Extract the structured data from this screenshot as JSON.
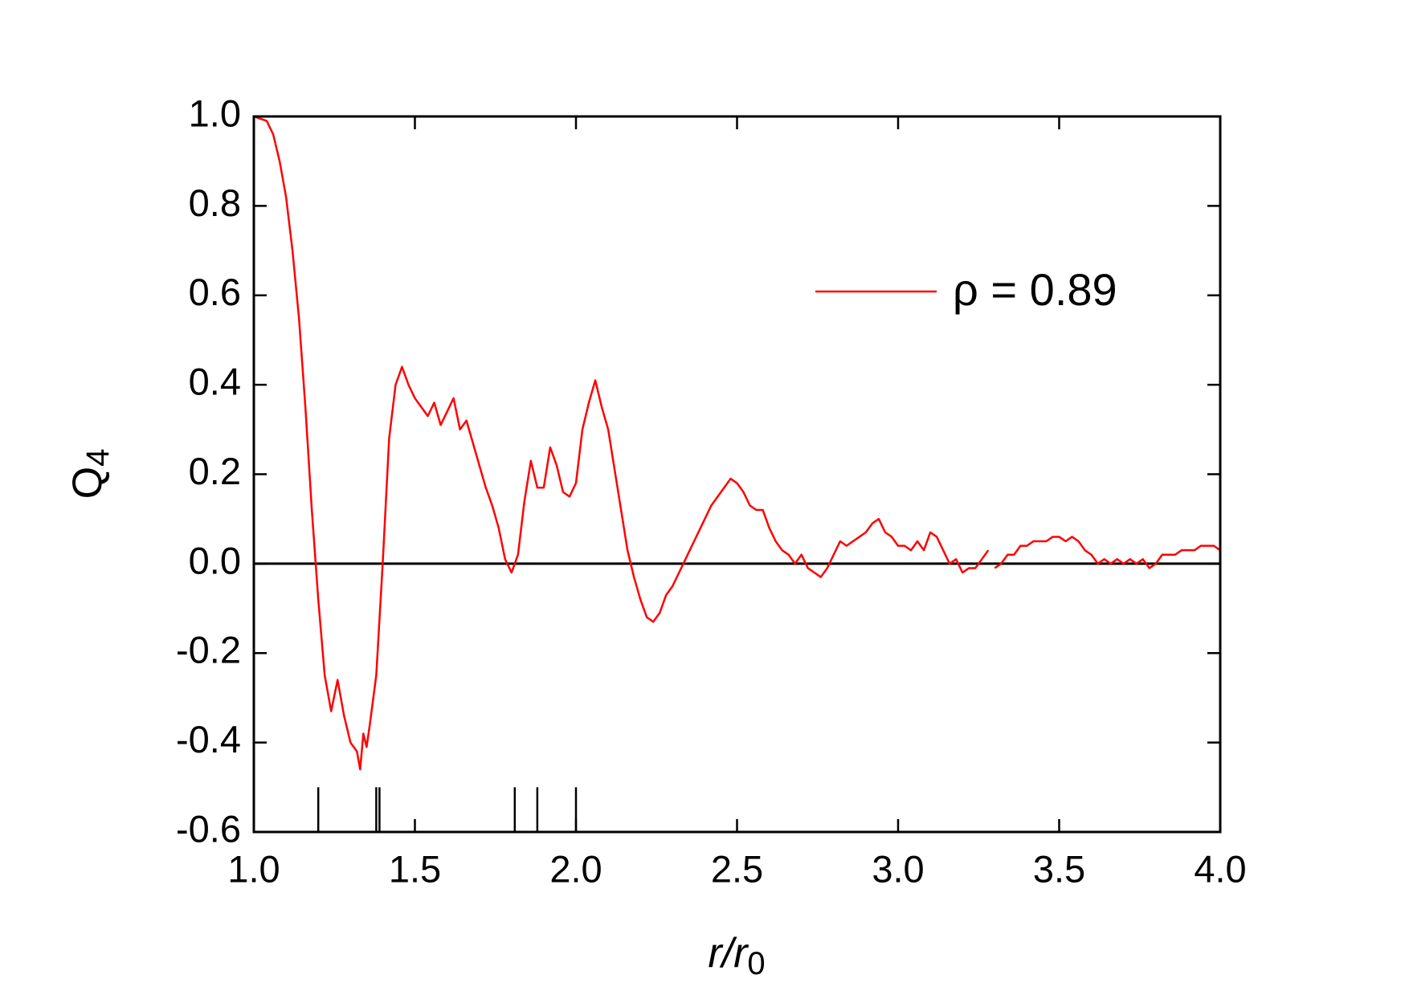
{
  "chart_data": {
    "type": "line",
    "xlabel": {
      "text": "r/r",
      "subscript": "0"
    },
    "ylabel": {
      "text": "Q",
      "subscript": "4"
    },
    "x": [
      1.0,
      1.02,
      1.04,
      1.06,
      1.08,
      1.1,
      1.12,
      1.14,
      1.16,
      1.18,
      1.2,
      1.22,
      1.24,
      1.26,
      1.28,
      1.3,
      1.32,
      1.33,
      1.34,
      1.35,
      1.36,
      1.38,
      1.4,
      1.42,
      1.44,
      1.46,
      1.48,
      1.5,
      1.52,
      1.54,
      1.56,
      1.58,
      1.6,
      1.62,
      1.64,
      1.66,
      1.68,
      1.7,
      1.72,
      1.74,
      1.76,
      1.78,
      1.8,
      1.82,
      1.84,
      1.86,
      1.88,
      1.9,
      1.92,
      1.94,
      1.96,
      1.98,
      2.0,
      2.02,
      2.04,
      2.06,
      2.08,
      2.1,
      2.12,
      2.14,
      2.16,
      2.18,
      2.2,
      2.22,
      2.24,
      2.26,
      2.28,
      2.3,
      2.32,
      2.34,
      2.36,
      2.38,
      2.4,
      2.42,
      2.44,
      2.46,
      2.48,
      2.5,
      2.52,
      2.54,
      2.56,
      2.58,
      2.6,
      2.62,
      2.64,
      2.66,
      2.68,
      2.7,
      2.72,
      2.74,
      2.76,
      2.78,
      2.8,
      2.82,
      2.84,
      2.86,
      2.88,
      2.9,
      2.92,
      2.94,
      2.96,
      2.98,
      3.0,
      3.02,
      3.04,
      3.06,
      3.08,
      3.1,
      3.12,
      3.14,
      3.16,
      3.18,
      3.2,
      3.22,
      3.24,
      3.26,
      3.28,
      3.29,
      3.3,
      3.32,
      3.34,
      3.36,
      3.38,
      3.4,
      3.42,
      3.44,
      3.46,
      3.48,
      3.5,
      3.52,
      3.54,
      3.56,
      3.58,
      3.6,
      3.62,
      3.64,
      3.66,
      3.68,
      3.7,
      3.72,
      3.74,
      3.76,
      3.78,
      3.8,
      3.82,
      3.84,
      3.86,
      3.88,
      3.9,
      3.92,
      3.94,
      3.96,
      3.98,
      4.0
    ],
    "series": [
      {
        "name": "ρ = 0.89",
        "color": "#ff0000",
        "values": [
          1.0,
          0.995,
          0.99,
          0.96,
          0.9,
          0.82,
          0.7,
          0.55,
          0.35,
          0.12,
          -0.08,
          -0.25,
          -0.33,
          -0.26,
          -0.34,
          -0.4,
          -0.42,
          -0.46,
          -0.38,
          -0.41,
          -0.36,
          -0.25,
          0.0,
          0.28,
          0.4,
          0.44,
          0.4,
          0.37,
          0.35,
          0.33,
          0.36,
          0.31,
          0.34,
          0.37,
          0.3,
          0.32,
          0.27,
          0.22,
          0.17,
          0.13,
          0.08,
          0.01,
          -0.02,
          0.02,
          0.14,
          0.23,
          0.17,
          0.17,
          0.26,
          0.22,
          0.16,
          0.15,
          0.18,
          0.3,
          0.36,
          0.41,
          0.35,
          0.3,
          0.21,
          0.12,
          0.03,
          -0.03,
          -0.08,
          -0.12,
          -0.13,
          -0.11,
          -0.07,
          -0.05,
          -0.02,
          0.01,
          0.04,
          0.07,
          0.1,
          0.13,
          0.15,
          0.17,
          0.19,
          0.18,
          0.16,
          0.13,
          0.12,
          0.12,
          0.08,
          0.05,
          0.03,
          0.02,
          0.0,
          0.02,
          -0.01,
          -0.02,
          -0.03,
          -0.01,
          0.02,
          0.05,
          0.04,
          0.05,
          0.06,
          0.07,
          0.09,
          0.1,
          0.07,
          0.06,
          0.04,
          0.04,
          0.03,
          0.05,
          0.03,
          0.07,
          0.06,
          0.03,
          0.0,
          0.01,
          -0.02,
          -0.01,
          -0.01,
          0.01,
          0.03,
          null,
          -0.01,
          0.0,
          0.02,
          0.02,
          0.04,
          0.04,
          0.05,
          0.05,
          0.05,
          0.06,
          0.06,
          0.05,
          0.06,
          0.05,
          0.03,
          0.02,
          0.0,
          0.01,
          0.0,
          0.01,
          0.0,
          0.01,
          0.0,
          0.01,
          -0.01,
          0.0,
          0.02,
          0.02,
          0.02,
          0.03,
          0.03,
          0.03,
          0.04,
          0.04,
          0.04,
          0.03
        ]
      }
    ],
    "hline": 0,
    "markers": {
      "x": [
        1.2,
        1.38,
        1.39,
        1.81,
        1.88,
        2.0
      ],
      "range": [
        -0.6,
        -0.5
      ]
    },
    "xlim": [
      1.0,
      4.0
    ],
    "xticks": [
      {
        "value": 1,
        "label": "1.0"
      },
      1.5,
      {
        "value": 2,
        "label": "2.0"
      },
      2.5,
      {
        "value": 3,
        "label": "3.0"
      },
      3.5,
      {
        "value": 4,
        "label": "4.0"
      }
    ],
    "ylim": [
      -0.6,
      1.0
    ],
    "yticks": [
      -0.6,
      -0.4,
      -0.2,
      {
        "value": 0,
        "label": "0.0"
      },
      0.2,
      0.4,
      0.6,
      0.8,
      {
        "value": 1,
        "label": "1.0"
      }
    ],
    "legend": "upper-right"
  }
}
